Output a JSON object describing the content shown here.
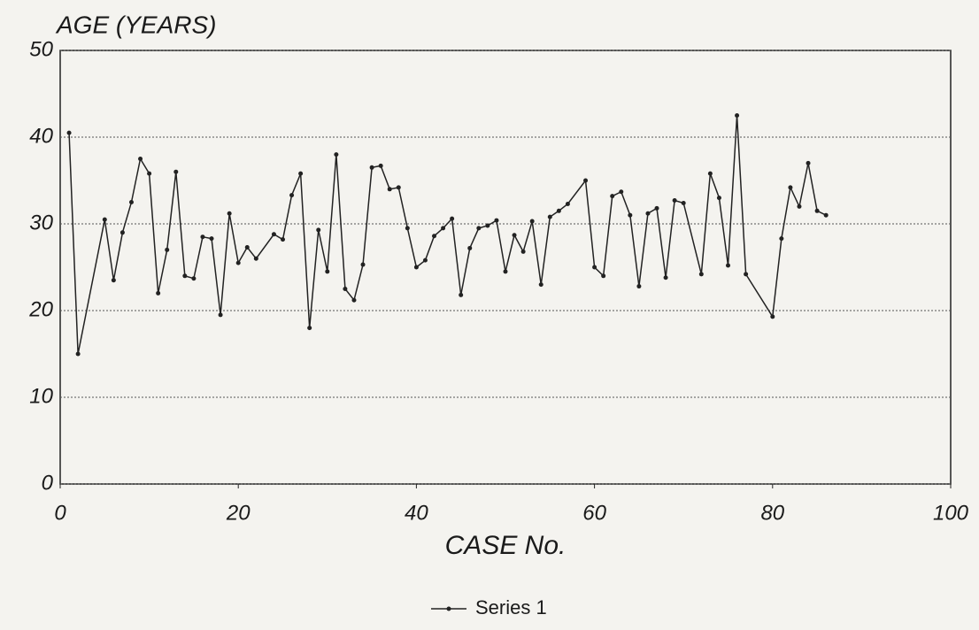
{
  "chart_data": {
    "type": "line",
    "title": "AGE (YEARS)",
    "x_label": "CASE No.",
    "x": [
      1,
      2,
      5,
      6,
      7,
      8,
      9,
      10,
      11,
      12,
      13,
      14,
      15,
      16,
      17,
      18,
      19,
      20,
      21,
      22,
      24,
      25,
      26,
      27,
      28,
      29,
      30,
      31,
      32,
      33,
      34,
      35,
      36,
      37,
      38,
      39,
      40,
      41,
      42,
      43,
      44,
      45,
      46,
      47,
      48,
      49,
      50,
      51,
      52,
      53,
      54,
      55,
      56,
      57,
      59,
      60,
      61,
      62,
      63,
      64,
      65,
      66,
      67,
      68,
      69,
      70,
      72,
      73,
      74,
      75,
      76,
      77,
      80,
      81,
      82,
      83,
      84,
      85,
      86
    ],
    "series": [
      {
        "name": "Series 1",
        "color": "#222222",
        "values": [
          40.5,
          15,
          30.5,
          23.5,
          29,
          32.5,
          37.5,
          35.8,
          22,
          27,
          36,
          24,
          23.7,
          28.5,
          28.3,
          19.5,
          31.2,
          25.5,
          27.3,
          26,
          28.8,
          28.2,
          33.3,
          35.8,
          18,
          29.3,
          24.5,
          38,
          22.5,
          21.2,
          25.3,
          36.5,
          36.7,
          34,
          34.2,
          29.5,
          25,
          25.8,
          28.6,
          29.5,
          30.6,
          21.8,
          27.2,
          29.5,
          29.8,
          30.4,
          24.5,
          28.7,
          26.8,
          30.3,
          23,
          30.8,
          31.5,
          32.3,
          35,
          25,
          24,
          33.2,
          33.7,
          31,
          22.8,
          31.2,
          31.8,
          23.8,
          32.7,
          32.4,
          24.2,
          35.8,
          33,
          25.2,
          42.5,
          24.2,
          19.3,
          28.3,
          34.2,
          32,
          37,
          31.5,
          31
        ]
      }
    ],
    "xlim": [
      0,
      100
    ],
    "xticks": [
      0,
      20,
      40,
      60,
      80,
      100
    ],
    "ylim": [
      0,
      50
    ],
    "yticks": [
      0,
      10,
      20,
      30,
      40,
      50
    ],
    "grid": true,
    "legend": "bottom"
  }
}
